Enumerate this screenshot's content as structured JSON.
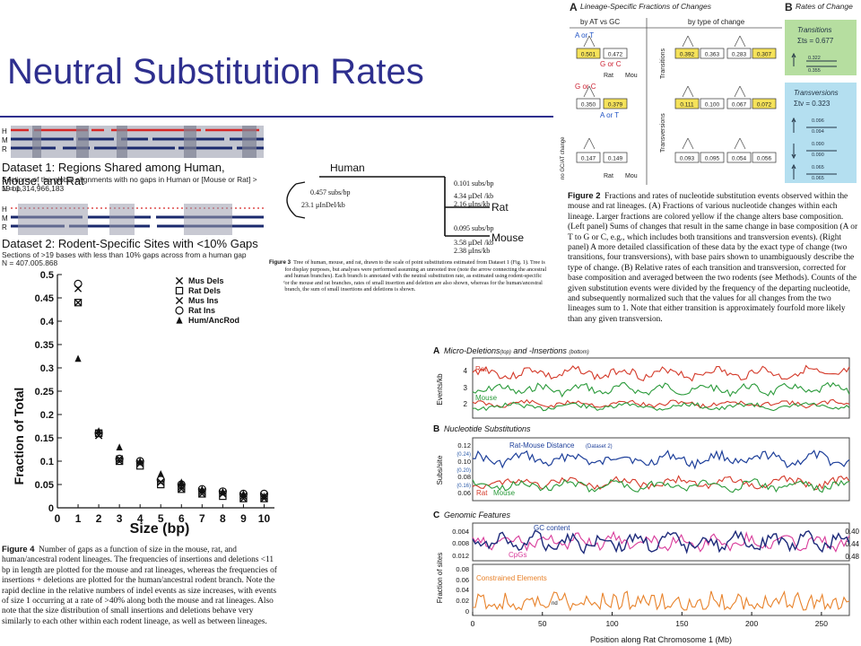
{
  "slide": {
    "title": "Neutral Substitution Rates"
  },
  "dataset_panel": {
    "ds1_title": "Dataset 1: Regions Shared among Human, Mouse, and Rat",
    "ds1_desc": "Sections of the global alignments with no gaps in Human or [Mouse or Rat] > 19 bp",
    "ds1_n": "N = 1,314,966,183",
    "ds2_title": "Dataset 2: Rodent-Specific Sites with <10% Gaps",
    "ds2_desc": "Sections of >19 bases with less than 10% gaps across from a human gap",
    "ds2_n": "N = 407,005,868",
    "row_labels": [
      "H",
      "M",
      "R"
    ]
  },
  "tree_panel": {
    "node_human": "Human",
    "node_rat": "Rat",
    "node_mouse": "Mouse",
    "root_rate": "0.457 subs/bp",
    "root_indel": "23.1 μInDel/kb",
    "rat_rates": [
      "0.101 subs/bp",
      "4.34  μDel /kb",
      "2.16  μIns/kb"
    ],
    "mouse_rates": [
      "0.095 subs/bp",
      "3.58  μDel /kb",
      "2.38  μIns/kb"
    ],
    "caption_label": "Figure 3",
    "caption": "Tree of human, mouse, and rat, drawn to the scale of point substitutions estimated from Dataset 1 (Fig. 1). Tree is rooted for display purposes, but analyses were performed assuming an unrooted tree (note the arrow connecting the ancestral rodent and human branches). Each branch is annotated with the neutral substitution rate, as estimated using rodent-specific sites. For the mouse and rat branches, rates of small insertion and deletion are also shown, whereas for the human/ancestral rodent branch, the sum of small insertions and deletions is shown."
  },
  "fig2_panel": {
    "a_letter": "A",
    "a_title": "Lineage-Specific Fractions of Changes",
    "b_letter": "B",
    "b_title": "Rates of Change",
    "by_at_gc": "by AT vs GC",
    "by_type": "by type of change",
    "transitions_side": "Transitions",
    "transversions_side": "Transversions",
    "no_gc_at": "no GC/AT change",
    "a_or_t": "A or T",
    "g_or_c": "G or C",
    "rat": "Rat",
    "mou": "Mou",
    "box_values": [
      "0.501",
      "0.472",
      "0.350",
      "0.379",
      "0.147",
      "0.149",
      "0.392",
      "0.363",
      "0.283",
      "0.307",
      "0.111",
      "0.100",
      "0.067",
      "0.072",
      "0.093",
      "0.095",
      "0.054",
      "0.056"
    ],
    "transitions_label": "Transitions",
    "transitions_sum": "Σts = 0.677",
    "ts_rates": [
      "0.322",
      "0.355"
    ],
    "transversions_label": "Transversions",
    "transversions_sum": "Σtv = 0.323",
    "tv_rates": [
      "0.096",
      "0.094",
      "0.090",
      "0.090",
      "0.065",
      "0.065"
    ],
    "caption_label": "Figure 2",
    "caption": "Fractions and rates of nucleotide substitution events observed within the mouse and rat lineages. (A) Fractions of various nucleotide changes within each lineage. Larger fractions are colored yellow if the change alters base composition. (Left panel) Sums of changes that result in the same change in base composition (A or T to G or C, e.g., which includes both transitions and transversion events). (Right panel) A more detailed classification of these data by the exact type of change (two transitions, four transversions), with base pairs shown to unambiguously describe the type of change. (B) Relative rates of each transition and transversion, corrected for base composition and averaged between the two rodents (see Methods). Counts of the given substitution events were divided by the frequency of the departing nucleotide, and subsequently normalized such that the values for all changes from the two lineages sum to 1. Note that either transition is approximately fourfold more likely than any given transversion."
  },
  "fig4_panel": {
    "caption_label": "Figure 4",
    "caption": "Number of gaps as a function of size in the mouse, rat, and human/ancestral rodent lineages. The frequencies of insertions and deletions <11 bp in length are plotted for the mouse and rat lineages, whereas the frequencies of insertions + deletions are plotted for the human/ancestral rodent branch. Note the rapid decline in the relative numbers of indel events as size increases, with events of size 1 occurring at a rate of >40% along both the mouse and rat lineages. Also note that the size distribution of small insertions and deletions behave very similarly to each other within each rodent lineage, as well as between lineages."
  },
  "chromosome_panel": {
    "a_letter": "A",
    "a_title": "Micro-Deletions",
    "a_top": "(top)",
    "a_and": " and -Insertions ",
    "a_bottom": "(bottom)",
    "a_ylabel": "Events/kb",
    "a_yticks": [
      "4",
      "3",
      "2"
    ],
    "a_rat": "Rat",
    "a_mouse": "Mouse",
    "b_letter": "B",
    "b_title": "Nucleotide Substitutions",
    "b_ylabel": "Subs/site",
    "b_yticks": [
      "0.12",
      "0.10",
      "0.08",
      "0.06"
    ],
    "b_yticks_paren": [
      "(0.24)",
      "(0.20)",
      "(0.16)"
    ],
    "b_rm_label": "Rat-Mouse Distance",
    "b_ds2": "(Dataset 2)",
    "b_rat": "Rat",
    "b_mouse": "Mouse",
    "c_letter": "C",
    "c_title": "Genomic Features",
    "c_yticks_top": [
      "0.004",
      "0.008",
      "0.012"
    ],
    "c_right_ticks": [
      "0.40",
      "0.44",
      "0.48"
    ],
    "c_gc": "GC content",
    "c_cpg": "CpGs",
    "c_ylabel": "Fraction of sites",
    "c_yticks_bottom": [
      "0.08",
      "0.06",
      "0.04",
      "0.02",
      "0"
    ],
    "c_constrained": "Constrained Elements",
    "c_nd": "nd",
    "xticks": [
      "0",
      "50",
      "100",
      "150",
      "200",
      "250"
    ],
    "xlabel": "Position along Rat Chromosome 1 (Mb)"
  },
  "chart_data": {
    "type": "scatter",
    "title": "",
    "xlabel": "Size (bp)",
    "ylabel": "Fraction of Total",
    "x": [
      1,
      2,
      3,
      4,
      5,
      6,
      7,
      8,
      9,
      10
    ],
    "xticks": [
      "0",
      "1",
      "2",
      "3",
      "4",
      "5",
      "6",
      "7",
      "8",
      "9",
      "10"
    ],
    "yticks": [
      "0",
      "0.05",
      "0.1",
      "0.15",
      "0.2",
      "0.25",
      "0.3",
      "0.35",
      "0.4",
      "0.45",
      "0.5"
    ],
    "xlim": [
      0,
      10.5
    ],
    "ylim": [
      0,
      0.5
    ],
    "legend_position": "top-right",
    "series": [
      {
        "name": "Mus Dels",
        "marker": "x",
        "values": [
          0.47,
          0.155,
          0.105,
          0.095,
          0.055,
          0.045,
          0.035,
          0.03,
          0.025,
          0.025
        ]
      },
      {
        "name": "Rat Dels",
        "marker": "square",
        "values": [
          0.44,
          0.16,
          0.1,
          0.09,
          0.05,
          0.04,
          0.03,
          0.025,
          0.02,
          0.02
        ]
      },
      {
        "name": "Mus Ins",
        "marker": "x",
        "values": [
          0.44,
          0.155,
          0.1,
          0.095,
          0.055,
          0.04,
          0.03,
          0.03,
          0.02,
          0.02
        ]
      },
      {
        "name": "Rat Ins",
        "marker": "circle",
        "values": [
          0.48,
          0.16,
          0.105,
          0.1,
          0.06,
          0.05,
          0.04,
          0.035,
          0.03,
          0.03
        ]
      },
      {
        "name": "Hum/AncRod",
        "marker": "triangle",
        "values": [
          0.32,
          0.165,
          0.13,
          0.1,
          0.073,
          0.055,
          0.04,
          0.035,
          0.03,
          0.025
        ]
      }
    ]
  }
}
